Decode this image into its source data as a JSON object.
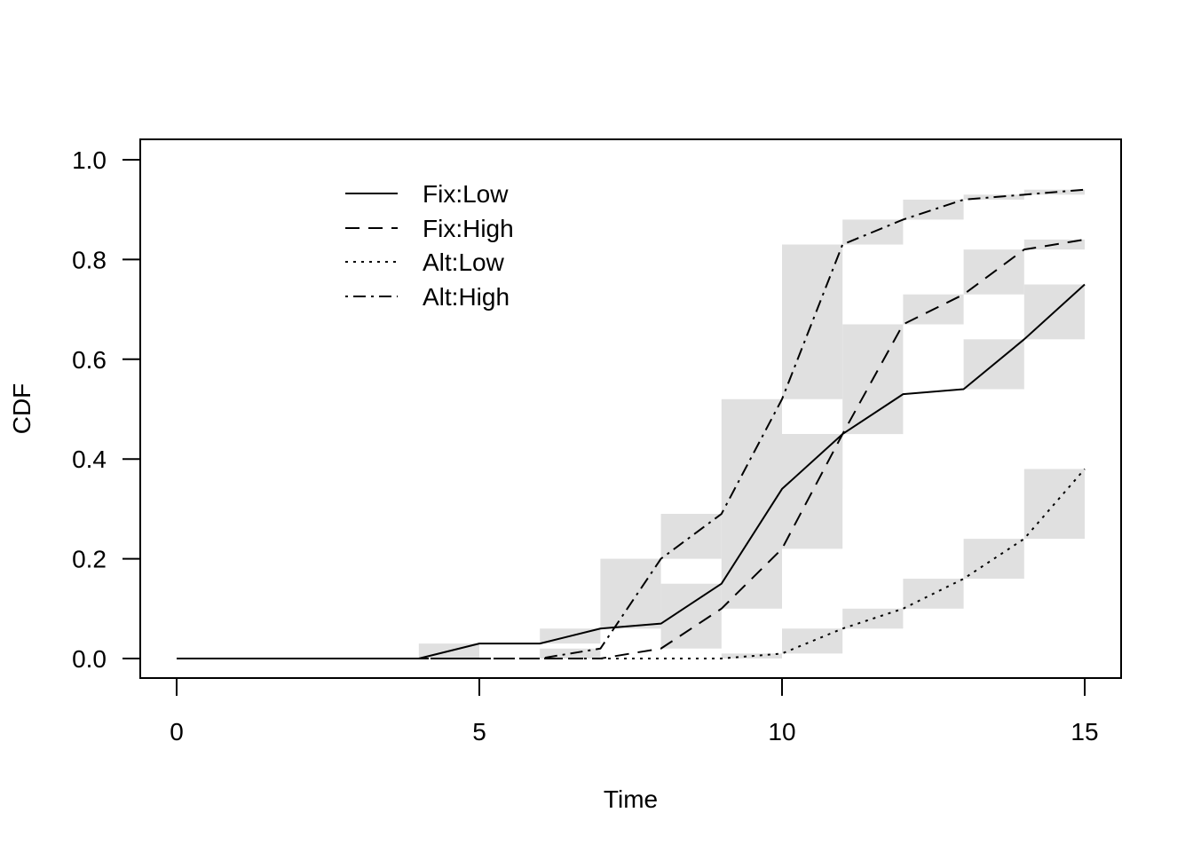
{
  "chart_data": {
    "type": "line",
    "title": "",
    "xlabel": "Time",
    "ylabel": "CDF",
    "xlim": [
      0,
      15
    ],
    "ylim": [
      0,
      1
    ],
    "x_ticks": [
      0,
      5,
      10,
      15
    ],
    "x_tick_labels": [
      "0",
      "5",
      "10",
      "15"
    ],
    "y_ticks": [
      0,
      0.2,
      0.4,
      0.6,
      0.8,
      1.0
    ],
    "y_tick_labels": [
      "0.0",
      "0.2",
      "0.4",
      "0.6",
      "0.8",
      "1.0"
    ],
    "grid": false,
    "legend_position": "top-left",
    "band_color": "#e0e0e0",
    "line_color": "#000000",
    "x": [
      0,
      1,
      2,
      3,
      4,
      5,
      6,
      7,
      8,
      9,
      10,
      11,
      12,
      13,
      14,
      15
    ],
    "series": [
      {
        "name": "Fix:Low",
        "line_style": "solid",
        "values": [
          0,
          0,
          0,
          0,
          0,
          0.03,
          0.03,
          0.06,
          0.07,
          0.15,
          0.34,
          0.45,
          0.53,
          0.54,
          0.64,
          0.75
        ],
        "bands": [
          {
            "x": [
              4,
              5
            ],
            "lower": 0.0,
            "upper": 0.03
          },
          {
            "x": [
              6,
              7
            ],
            "lower": 0.03,
            "upper": 0.06
          },
          {
            "x": [
              7,
              8
            ],
            "lower": 0.06,
            "upper": 0.2
          },
          {
            "x": [
              9,
              10
            ],
            "lower": 0.1,
            "upper": 0.52
          },
          {
            "x": [
              10,
              11
            ],
            "lower": 0.34,
            "upper": 0.45
          },
          {
            "x": [
              11,
              12
            ],
            "lower": 0.45,
            "upper": 0.67
          },
          {
            "x": [
              13,
              14
            ],
            "lower": 0.54,
            "upper": 0.64
          },
          {
            "x": [
              14,
              15
            ],
            "lower": 0.64,
            "upper": 0.75
          }
        ]
      },
      {
        "name": "Fix:High",
        "line_style": "dashed",
        "values": [
          0,
          0,
          0,
          0,
          0,
          0,
          0,
          0.0,
          0.02,
          0.1,
          0.22,
          0.45,
          0.67,
          0.73,
          0.82,
          0.84
        ],
        "bands": [
          {
            "x": [
              6,
              7
            ],
            "lower": 0.0,
            "upper": 0.02
          },
          {
            "x": [
              8,
              9
            ],
            "lower": 0.02,
            "upper": 0.15
          },
          {
            "x": [
              10,
              11
            ],
            "lower": 0.22,
            "upper": 0.45
          },
          {
            "x": [
              12,
              13
            ],
            "lower": 0.67,
            "upper": 0.73
          },
          {
            "x": [
              13,
              14
            ],
            "lower": 0.73,
            "upper": 0.82
          },
          {
            "x": [
              14,
              15
            ],
            "lower": 0.82,
            "upper": 0.84
          }
        ]
      },
      {
        "name": "Alt:Low",
        "line_style": "dotted",
        "values": [
          0,
          0,
          0,
          0,
          0,
          0,
          0,
          0,
          0,
          0,
          0.01,
          0.06,
          0.1,
          0.16,
          0.24,
          0.38
        ],
        "bands": [
          {
            "x": [
              9,
              10
            ],
            "lower": 0.0,
            "upper": 0.01
          },
          {
            "x": [
              10,
              11
            ],
            "lower": 0.01,
            "upper": 0.06
          },
          {
            "x": [
              11,
              12
            ],
            "lower": 0.06,
            "upper": 0.1
          },
          {
            "x": [
              12,
              13
            ],
            "lower": 0.1,
            "upper": 0.16
          },
          {
            "x": [
              13,
              14
            ],
            "lower": 0.16,
            "upper": 0.24
          },
          {
            "x": [
              14,
              15
            ],
            "lower": 0.24,
            "upper": 0.38
          }
        ]
      },
      {
        "name": "Alt:High",
        "line_style": "dot-dash",
        "values": [
          0,
          0,
          0,
          0,
          0,
          0,
          0,
          0.02,
          0.2,
          0.29,
          0.52,
          0.83,
          0.88,
          0.92,
          0.93,
          0.94
        ],
        "bands": [
          {
            "x": [
              8,
              9
            ],
            "lower": 0.2,
            "upper": 0.29
          },
          {
            "x": [
              10,
              11
            ],
            "lower": 0.52,
            "upper": 0.83
          },
          {
            "x": [
              11,
              12
            ],
            "lower": 0.83,
            "upper": 0.88
          },
          {
            "x": [
              12,
              13
            ],
            "lower": 0.88,
            "upper": 0.92
          },
          {
            "x": [
              13,
              14
            ],
            "lower": 0.92,
            "upper": 0.93
          },
          {
            "x": [
              14,
              15
            ],
            "lower": 0.93,
            "upper": 0.94
          }
        ]
      }
    ]
  }
}
